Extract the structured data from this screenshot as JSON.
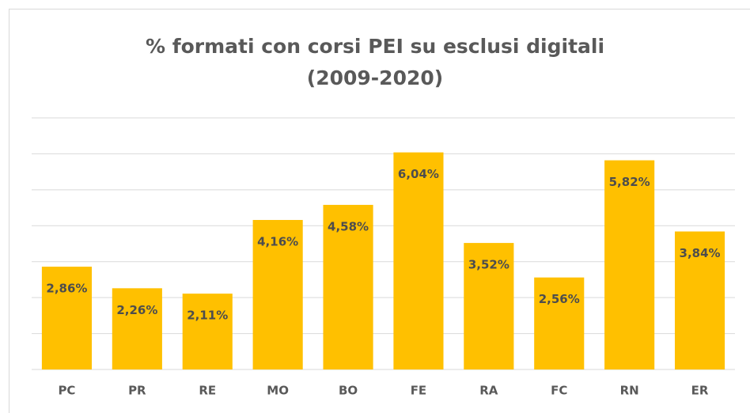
{
  "chart_data": {
    "type": "bar",
    "title": "% formati con corsi PEI su esclusi digitali",
    "subtitle": "(2009-2020)",
    "categories": [
      "PC",
      "PR",
      "RE",
      "MO",
      "BO",
      "FE",
      "RA",
      "FC",
      "RN",
      "ER"
    ],
    "values": [
      2.86,
      2.26,
      2.11,
      4.16,
      4.58,
      6.04,
      3.52,
      2.56,
      5.82,
      3.84
    ],
    "value_labels": [
      "2,86%",
      "2,26%",
      "2,11%",
      "4,16%",
      "4,58%",
      "6,04%",
      "3,52%",
      "2,56%",
      "5,82%",
      "3,84%"
    ],
    "color": "#ffc000",
    "ylim": [
      0,
      7
    ],
    "yticks": [
      0,
      1,
      2,
      3,
      4,
      5,
      6,
      7
    ],
    "grid": true
  }
}
